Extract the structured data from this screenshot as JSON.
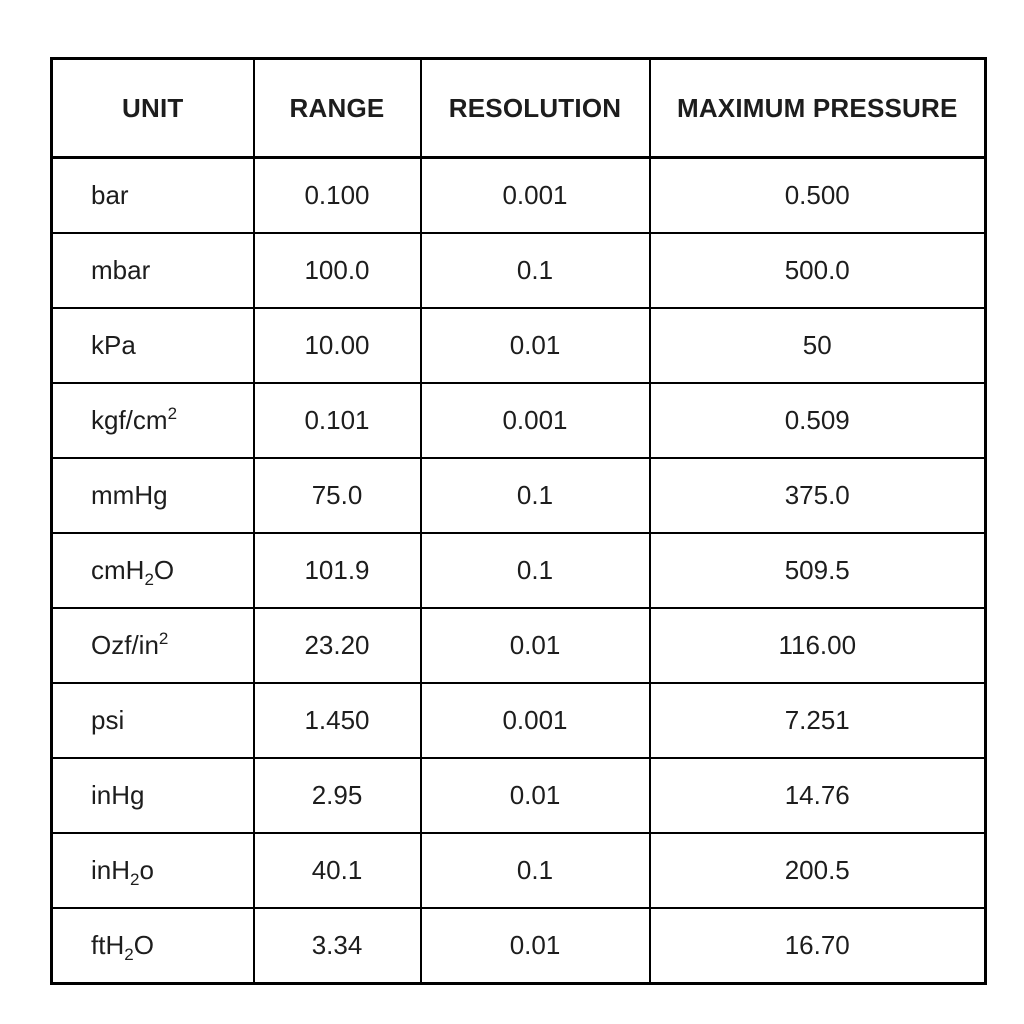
{
  "page": {
    "background_color": "#ffffff",
    "text_color": "#1d1d1d",
    "border_color": "#000000"
  },
  "table": {
    "headers": {
      "unit": "UNIT",
      "range": "RANGE",
      "resolution": "RESOLUTION",
      "max_pressure": "MAXIMUM PRESSURE"
    },
    "rows": [
      {
        "unit": {
          "pre": "bar"
        },
        "range": "0.100",
        "resolution": "0.001",
        "max_pressure": "0.500"
      },
      {
        "unit": {
          "pre": "mbar"
        },
        "range": "100.0",
        "resolution": "0.1",
        "max_pressure": "500.0"
      },
      {
        "unit": {
          "pre": "kPa"
        },
        "range": "10.00",
        "resolution": "0.01",
        "max_pressure": "50"
      },
      {
        "unit": {
          "pre": "kgf/cm",
          "sup": "2"
        },
        "range": "0.101",
        "resolution": "0.001",
        "max_pressure": "0.509"
      },
      {
        "unit": {
          "pre": "mmHg"
        },
        "range": "75.0",
        "resolution": "0.1",
        "max_pressure": "375.0"
      },
      {
        "unit": {
          "pre": "cmH",
          "sub": "2",
          "post": "O"
        },
        "range": "101.9",
        "resolution": "0.1",
        "max_pressure": "509.5"
      },
      {
        "unit": {
          "pre": "Ozf/in",
          "sup": "2"
        },
        "range": "23.20",
        "resolution": "0.01",
        "max_pressure": "116.00"
      },
      {
        "unit": {
          "pre": "psi"
        },
        "range": "1.450",
        "resolution": "0.001",
        "max_pressure": "7.251"
      },
      {
        "unit": {
          "pre": "inHg"
        },
        "range": "2.95",
        "resolution": "0.01",
        "max_pressure": "14.76"
      },
      {
        "unit": {
          "pre": "inH",
          "sub": "2",
          "post": "o"
        },
        "range": "40.1",
        "resolution": "0.1",
        "max_pressure": "200.5"
      },
      {
        "unit": {
          "pre": "ftH",
          "sub": "2",
          "post": "O"
        },
        "range": "3.34",
        "resolution": "0.01",
        "max_pressure": "16.70"
      }
    ]
  }
}
